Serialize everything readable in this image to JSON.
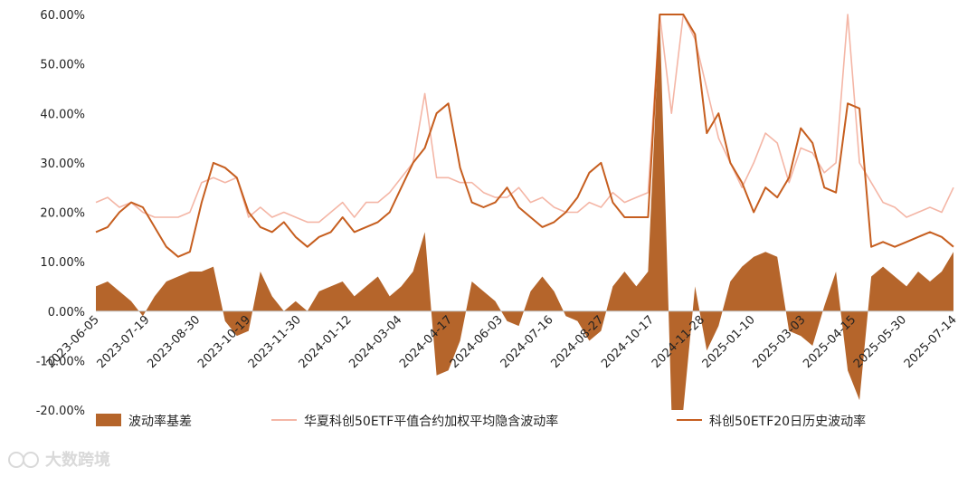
{
  "chart_data": {
    "type": "line",
    "ylim": [
      -0.2,
      0.6
    ],
    "yticks": [
      -0.2,
      -0.1,
      0.0,
      0.1,
      0.2,
      0.3,
      0.4,
      0.5,
      0.6
    ],
    "ytick_labels": [
      "-20.00%",
      "-10.00%",
      "0.00%",
      "10.00%",
      "20.00%",
      "30.00%",
      "40.00%",
      "50.00%",
      "60.00%"
    ],
    "x_tick_labels": [
      "2023-06-05",
      "2023-07-19",
      "2023-08-30",
      "2023-10-19",
      "2023-11-30",
      "2024-01-12",
      "2024-03-04",
      "2024-04-17",
      "2024-06-03",
      "2024-07-16",
      "2024-08-27",
      "2024-10-17",
      "2024-11-28",
      "2025-01-10",
      "2025-03-03",
      "2025-04-15",
      "2025-05-30",
      "2025-07-14"
    ],
    "grid": false,
    "legend_position": "bottom",
    "series": [
      {
        "name": "波动率基差",
        "type": "area",
        "color": "#b5652b",
        "values": [
          0.05,
          0.06,
          0.04,
          0.02,
          -0.01,
          0.03,
          0.06,
          0.07,
          0.08,
          0.08,
          0.09,
          -0.02,
          -0.05,
          -0.04,
          0.08,
          0.03,
          0.0,
          0.02,
          0.0,
          0.04,
          0.05,
          0.06,
          0.03,
          0.05,
          0.07,
          0.03,
          0.05,
          0.08,
          0.16,
          -0.13,
          -0.12,
          -0.06,
          0.06,
          0.04,
          0.02,
          -0.02,
          -0.03,
          0.04,
          0.07,
          0.04,
          -0.01,
          -0.02,
          -0.06,
          -0.04,
          0.05,
          0.08,
          0.05,
          0.08,
          0.6,
          -0.2,
          -0.2,
          0.05,
          -0.08,
          -0.03,
          0.06,
          0.09,
          0.11,
          0.12,
          0.11,
          -0.04,
          -0.05,
          -0.07,
          0.01,
          0.08,
          -0.12,
          -0.18,
          0.07,
          0.09,
          0.07,
          0.05,
          0.08,
          0.06,
          0.08,
          0.12
        ]
      },
      {
        "name": "华夏科创50ETF平值合约加权平均隐含波动率",
        "type": "line",
        "color": "#f4b6a6",
        "values": [
          0.22,
          0.23,
          0.21,
          0.22,
          0.2,
          0.19,
          0.19,
          0.19,
          0.2,
          0.26,
          0.27,
          0.26,
          0.27,
          0.19,
          0.21,
          0.19,
          0.2,
          0.19,
          0.18,
          0.18,
          0.2,
          0.22,
          0.19,
          0.22,
          0.22,
          0.24,
          0.27,
          0.3,
          0.44,
          0.27,
          0.27,
          0.26,
          0.26,
          0.24,
          0.23,
          0.23,
          0.25,
          0.22,
          0.23,
          0.21,
          0.2,
          0.2,
          0.22,
          0.21,
          0.24,
          0.22,
          0.23,
          0.24,
          0.6,
          0.4,
          0.6,
          0.55,
          0.45,
          0.35,
          0.3,
          0.25,
          0.3,
          0.36,
          0.34,
          0.26,
          0.33,
          0.32,
          0.28,
          0.3,
          0.6,
          0.3,
          0.26,
          0.22,
          0.21,
          0.19,
          0.2,
          0.21,
          0.2,
          0.25
        ]
      },
      {
        "name": "科创50ETF20日历史波动率",
        "type": "line",
        "color": "#c65e1f",
        "values": [
          0.16,
          0.17,
          0.2,
          0.22,
          0.21,
          0.17,
          0.13,
          0.11,
          0.12,
          0.22,
          0.3,
          0.29,
          0.27,
          0.2,
          0.17,
          0.16,
          0.18,
          0.15,
          0.13,
          0.15,
          0.16,
          0.19,
          0.16,
          0.17,
          0.18,
          0.2,
          0.25,
          0.3,
          0.33,
          0.4,
          0.42,
          0.29,
          0.22,
          0.21,
          0.22,
          0.25,
          0.21,
          0.19,
          0.17,
          0.18,
          0.2,
          0.23,
          0.28,
          0.3,
          0.22,
          0.19,
          0.19,
          0.19,
          0.6,
          0.6,
          0.6,
          0.56,
          0.36,
          0.4,
          0.3,
          0.26,
          0.2,
          0.25,
          0.23,
          0.27,
          0.37,
          0.34,
          0.25,
          0.24,
          0.42,
          0.41,
          0.13,
          0.14,
          0.13,
          0.14,
          0.15,
          0.16,
          0.15,
          0.13
        ]
      }
    ],
    "watermark": "大数跨境"
  }
}
